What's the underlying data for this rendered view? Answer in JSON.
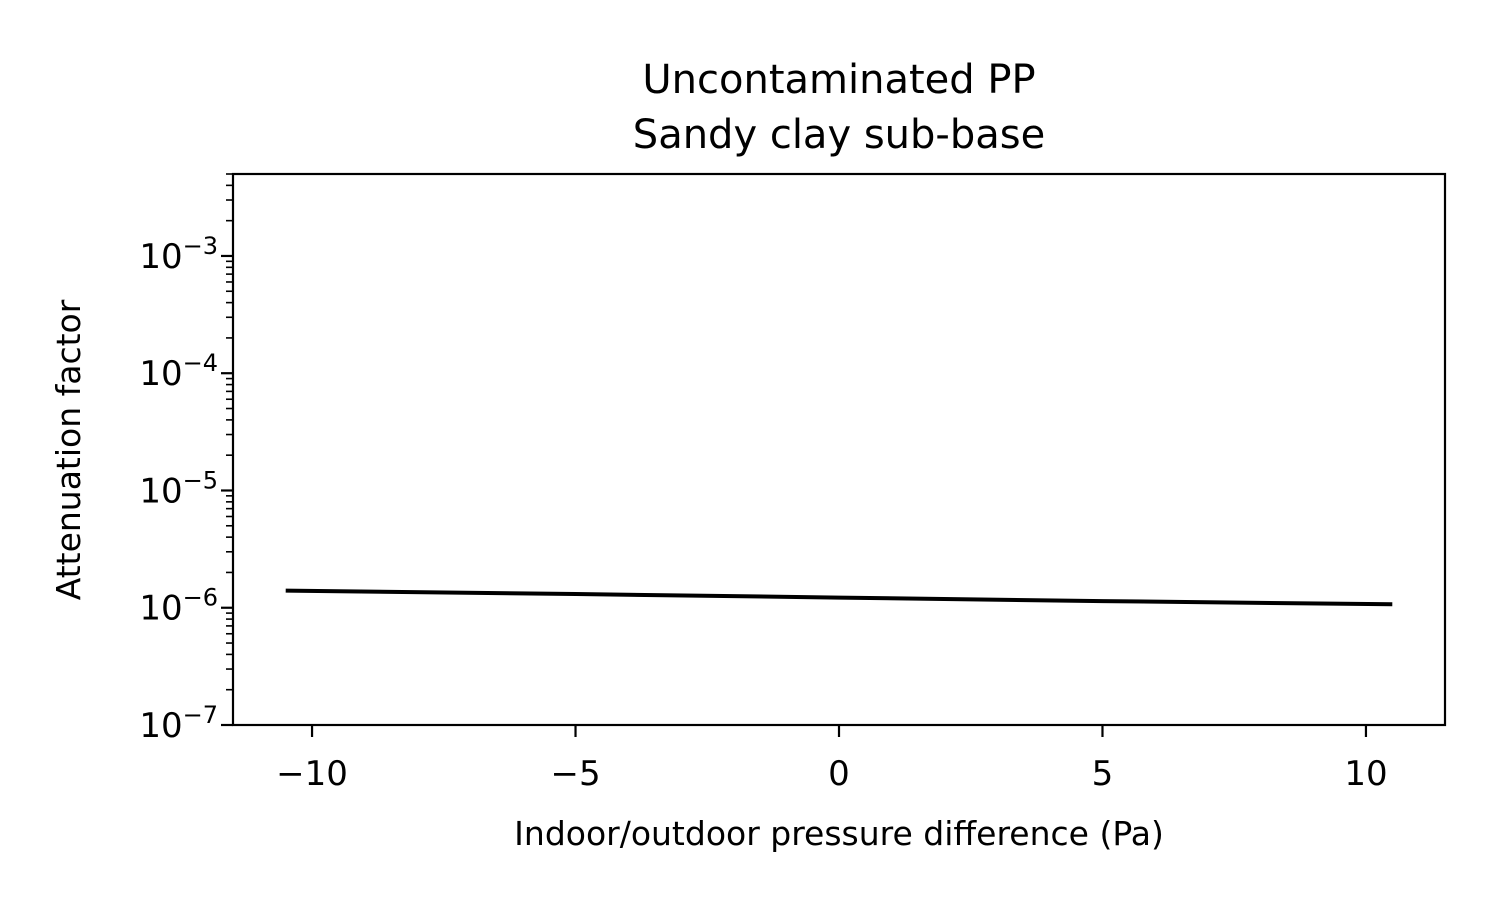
{
  "chart_data": {
    "type": "line",
    "title": "Uncontaminated PP",
    "subtitle": "Sandy clay sub-base",
    "xlabel": "Indoor/outdoor pressure difference (Pa)",
    "ylabel": "Attenuation factor",
    "xlim": [
      -11.5,
      11.5
    ],
    "ylim": [
      1e-07,
      0.005
    ],
    "yscale": "log",
    "grid": false,
    "x_ticks": [
      -10,
      -5,
      0,
      5,
      10
    ],
    "x_tick_labels": [
      "−10",
      "−5",
      "0",
      "5",
      "10"
    ],
    "y_ticks": [
      {
        "value": 1e-07,
        "base": "10",
        "exp": "−7"
      },
      {
        "value": 1e-06,
        "base": "10",
        "exp": "−6"
      },
      {
        "value": 1e-05,
        "base": "10",
        "exp": "−5"
      },
      {
        "value": 0.0001,
        "base": "10",
        "exp": "−4"
      },
      {
        "value": 0.001,
        "base": "10",
        "exp": "−3"
      }
    ],
    "series": [
      {
        "color": "#000000",
        "x": [
          -10.5,
          -5,
          0,
          5,
          10.5
        ],
        "y": [
          1.4e-06,
          1.31e-06,
          1.22e-06,
          1.14e-06,
          1.07e-06
        ]
      }
    ]
  }
}
